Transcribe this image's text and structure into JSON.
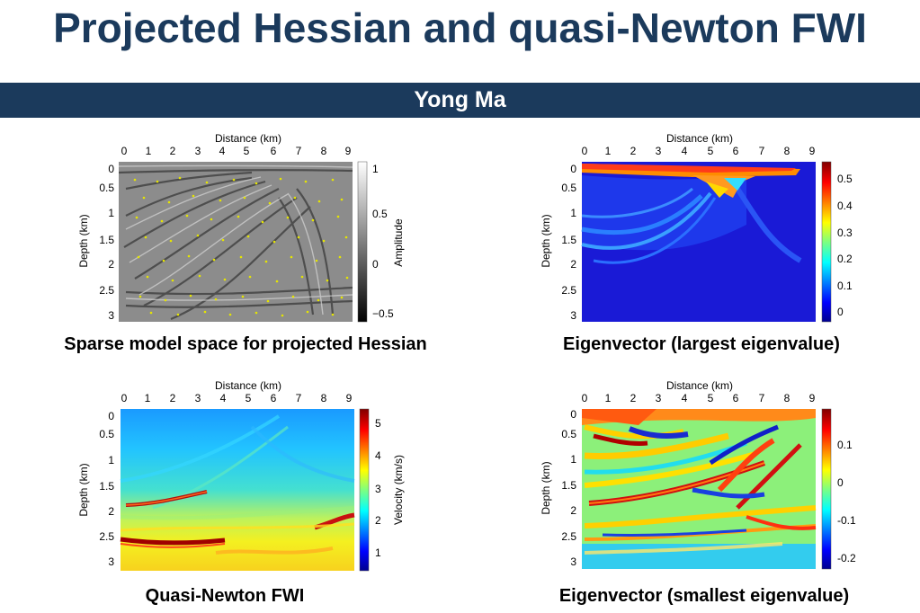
{
  "title": "Projected Hessian and quasi-Newton FWI",
  "author": "Yong Ma",
  "axes": {
    "x_label": "Distance (km)",
    "y_label": "Depth (km)",
    "x_ticks": [
      "0",
      "1",
      "2",
      "3",
      "4",
      "5",
      "6",
      "7",
      "8",
      "9"
    ],
    "y_ticks": [
      "0",
      "0.5",
      "1",
      "1.5",
      "2",
      "2.5",
      "3"
    ]
  },
  "panels": {
    "top_left": {
      "caption": "Sparse model space for projected Hessian",
      "colorbar_label": "Amplitude",
      "colorbar_ticks": [
        "1",
        "0.5",
        "0",
        "−0.5"
      ]
    },
    "top_right": {
      "caption": "Eigenvector (largest eigenvalue)",
      "colorbar_ticks": [
        "0.5",
        "0.4",
        "0.3",
        "0.2",
        "0.1",
        "0"
      ]
    },
    "bottom_left": {
      "caption": "Quasi-Newton FWI",
      "colorbar_label": "Velocity (km/s)",
      "colorbar_ticks": [
        "5",
        "4",
        "3",
        "2",
        "1"
      ]
    },
    "bottom_right": {
      "caption": "Eigenvector (smallest eigenvalue)",
      "colorbar_ticks": [
        "0.1",
        "0",
        "-0.1",
        "-0.2"
      ]
    }
  },
  "colors": {
    "title": "#1b3a5c",
    "author_bar": "#1b3a5c",
    "sparse_points": "#e6e600"
  }
}
